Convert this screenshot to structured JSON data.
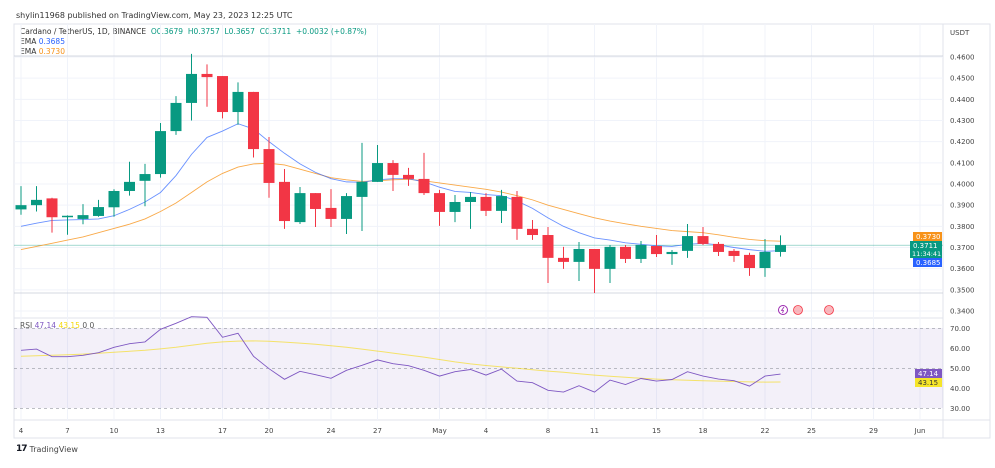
{
  "header": {
    "published": "shylin11968 published on TradingView.com, May 23, 2023 12:25 UTC"
  },
  "legend": {
    "symbol": "Cardano / TetherUS, 1D, BINANCE",
    "open": "O0.3679",
    "high": "H0.3757",
    "low": "L0.3657",
    "close": "C0.3711",
    "change": "+0.0032 (+0.87%)",
    "ema1_label": "EMA",
    "ema1_value": "0.3685",
    "ema2_label": "EMA",
    "ema2_value": "0.3730"
  },
  "rsi_legend": {
    "label": "RSI",
    "value": "47.14",
    "ma_value": "43.15",
    "extra1": "0",
    "extra2": "0"
  },
  "price_axis": {
    "currency": "USDT"
  },
  "tags": {
    "ema2": "0.3730",
    "last": "0.3711",
    "countdown": "11:34:41",
    "ema1": "0.3685",
    "rsi": "47.14",
    "rsi_ma": "43.15"
  },
  "footer": {
    "brand": "TradingView"
  },
  "colors": {
    "up": "#089981",
    "down": "#f23645",
    "ema1": "#2962ff",
    "ema2": "#f7931a",
    "rsi": "#7e57c2",
    "rsi_ma": "#f5d90a"
  },
  "chart_data": [
    {
      "type": "candlestick",
      "dates": [
        "Apr 4",
        "Apr 5",
        "Apr 6",
        "Apr 7",
        "Apr 8",
        "Apr 9",
        "Apr 10",
        "Apr 11",
        "Apr 12",
        "Apr 13",
        "Apr 14",
        "Apr 15",
        "Apr 16",
        "Apr 17",
        "Apr 18",
        "Apr 19",
        "Apr 20",
        "Apr 21",
        "Apr 22",
        "Apr 23",
        "Apr 24",
        "Apr 25",
        "Apr 26",
        "Apr 27",
        "Apr 28",
        "Apr 29",
        "Apr 30",
        "May 1",
        "May 2",
        "May 3",
        "May 4",
        "May 5",
        "May 6",
        "May 7",
        "May 8",
        "May 9",
        "May 10",
        "May 11",
        "May 12",
        "May 13",
        "May 14",
        "May 15",
        "May 16",
        "May 17",
        "May 18",
        "May 19",
        "May 20",
        "May 21",
        "May 22",
        "May 23"
      ],
      "ohlc": [
        [
          0.388,
          0.399,
          0.3855,
          0.39
        ],
        [
          0.39,
          0.399,
          0.387,
          0.3925
        ],
        [
          0.3932,
          0.3935,
          0.377,
          0.3843
        ],
        [
          0.3843,
          0.3852,
          0.376,
          0.385
        ],
        [
          0.3835,
          0.3905,
          0.381,
          0.3853
        ],
        [
          0.3849,
          0.3925,
          0.3845,
          0.3891
        ],
        [
          0.389,
          0.3975,
          0.3845,
          0.3967
        ],
        [
          0.3967,
          0.4105,
          0.3945,
          0.401
        ],
        [
          0.4015,
          0.4095,
          0.3895,
          0.4047
        ],
        [
          0.4047,
          0.4288,
          0.403,
          0.425
        ],
        [
          0.425,
          0.4415,
          0.4232,
          0.4383
        ],
        [
          0.4383,
          0.4615,
          0.43,
          0.452
        ],
        [
          0.452,
          0.4565,
          0.4365,
          0.4505
        ],
        [
          0.451,
          0.451,
          0.431,
          0.434
        ],
        [
          0.434,
          0.448,
          0.428,
          0.4435
        ],
        [
          0.4435,
          0.4435,
          0.4125,
          0.4165
        ],
        [
          0.4165,
          0.4222,
          0.3935,
          0.4005
        ],
        [
          0.401,
          0.4071,
          0.3788,
          0.3825
        ],
        [
          0.382,
          0.3986,
          0.3811,
          0.3957
        ],
        [
          0.3957,
          0.3957,
          0.3797,
          0.3882
        ],
        [
          0.3887,
          0.3976,
          0.3797,
          0.3835
        ],
        [
          0.3835,
          0.3957,
          0.3764,
          0.3943
        ],
        [
          0.3939,
          0.4194,
          0.3778,
          0.401
        ],
        [
          0.401,
          0.4184,
          0.401,
          0.4099
        ],
        [
          0.4099,
          0.4113,
          0.3967,
          0.4043
        ],
        [
          0.4043,
          0.4076,
          0.3991,
          0.4024
        ],
        [
          0.4024,
          0.4147,
          0.3948,
          0.3957
        ],
        [
          0.3957,
          0.3972,
          0.3802,
          0.3868
        ],
        [
          0.3868,
          0.3948,
          0.382,
          0.3915
        ],
        [
          0.3915,
          0.3962,
          0.3788,
          0.3939
        ],
        [
          0.3939,
          0.3957,
          0.3849,
          0.3873
        ],
        [
          0.3873,
          0.3972,
          0.3816,
          0.3943
        ],
        [
          0.3939,
          0.3967,
          0.3736,
          0.3788
        ],
        [
          0.3788,
          0.383,
          0.3736,
          0.3759
        ],
        [
          0.3759,
          0.3797,
          0.3532,
          0.3651
        ],
        [
          0.3651,
          0.3703,
          0.3599,
          0.3632
        ],
        [
          0.3632,
          0.3726,
          0.3542,
          0.3693
        ],
        [
          0.3693,
          0.3693,
          0.3485,
          0.3599
        ],
        [
          0.3599,
          0.3712,
          0.3532,
          0.3703
        ],
        [
          0.3703,
          0.3712,
          0.3627,
          0.3646
        ],
        [
          0.3646,
          0.3731,
          0.3627,
          0.3712
        ],
        [
          0.3707,
          0.3759,
          0.3655,
          0.3669
        ],
        [
          0.3669,
          0.3688,
          0.3618,
          0.3679
        ],
        [
          0.3684,
          0.3811,
          0.3651,
          0.3754
        ],
        [
          0.3754,
          0.3797,
          0.3712,
          0.3717
        ],
        [
          0.3717,
          0.3726,
          0.366,
          0.3679
        ],
        [
          0.3684,
          0.3693,
          0.3632,
          0.366
        ],
        [
          0.3665,
          0.3675,
          0.3566,
          0.3603
        ],
        [
          0.3603,
          0.374,
          0.3561,
          0.3679
        ],
        [
          0.3679,
          0.3757,
          0.3657,
          0.3711
        ]
      ],
      "ema1": [
        0.38,
        0.3815,
        0.3828,
        0.383,
        0.3832,
        0.3835,
        0.385,
        0.388,
        0.3915,
        0.396,
        0.404,
        0.414,
        0.422,
        0.425,
        0.4285,
        0.426,
        0.42,
        0.4145,
        0.4095,
        0.4055,
        0.4025,
        0.401,
        0.4008,
        0.402,
        0.4025,
        0.4025,
        0.401,
        0.3985,
        0.3965,
        0.396,
        0.395,
        0.3945,
        0.392,
        0.3885,
        0.384,
        0.38,
        0.377,
        0.3745,
        0.3735,
        0.3722,
        0.3715,
        0.3708,
        0.3705,
        0.3715,
        0.372,
        0.3712,
        0.37,
        0.369,
        0.3682,
        0.3685
      ],
      "ema2": [
        0.369,
        0.3705,
        0.372,
        0.3735,
        0.375,
        0.377,
        0.379,
        0.381,
        0.3835,
        0.387,
        0.391,
        0.396,
        0.401,
        0.405,
        0.408,
        0.4095,
        0.4098,
        0.409,
        0.407,
        0.405,
        0.403,
        0.402,
        0.4012,
        0.4015,
        0.402,
        0.4022,
        0.4015,
        0.4005,
        0.3995,
        0.3985,
        0.3975,
        0.3962,
        0.3945,
        0.3925,
        0.39,
        0.388,
        0.386,
        0.384,
        0.3825,
        0.3812,
        0.38,
        0.379,
        0.378,
        0.3775,
        0.377,
        0.376,
        0.3748,
        0.3738,
        0.3732,
        0.373
      ],
      "y_ticks": [
        "0.4600",
        "0.4500",
        "0.4400",
        "0.4300",
        "0.4200",
        "0.4100",
        "0.4000",
        "0.3900",
        "0.3800",
        "0.3700",
        "0.3600",
        "0.3500",
        "0.3400"
      ],
      "ylim": [
        0.34,
        0.46
      ],
      "x_ticks": [
        "4",
        "7",
        "10",
        "13",
        "17",
        "20",
        "24",
        "27",
        "May",
        "4",
        "8",
        "11",
        "15",
        "18",
        "22",
        "25",
        "29",
        "Jun"
      ]
    },
    {
      "type": "line",
      "rsi": [
        59,
        59.6,
        55.8,
        55.8,
        56.5,
        57.8,
        60.5,
        62.3,
        63.2,
        69.5,
        72.5,
        75.8,
        75.5,
        65.5,
        67.5,
        56,
        49.8,
        44.5,
        48.5,
        46.8,
        45,
        49,
        51.5,
        54.2,
        52.3,
        51.3,
        49,
        46.1,
        48.3,
        49.4,
        46.6,
        49.6,
        43.6,
        42.8,
        39,
        38.1,
        41.3,
        38.1,
        44.1,
        41.9,
        44.9,
        43.6,
        44.4,
        48.3,
        46.1,
        44.6,
        43.8,
        41.1,
        46.1,
        47.14
      ],
      "rsi_ma": [
        56,
        56.3,
        56.5,
        56.8,
        57.1,
        57.5,
        58,
        58.5,
        59,
        59.7,
        60.5,
        61.5,
        62.5,
        63.2,
        63.6,
        63.7,
        63.5,
        63.1,
        62.6,
        62,
        61.3,
        60.5,
        59.6,
        58.6,
        57.6,
        56.6,
        55.6,
        54.4,
        53.2,
        52.2,
        51.4,
        50.7,
        50,
        49.3,
        48.6,
        48,
        47.3,
        46.6,
        46,
        45.5,
        45,
        44.6,
        44.3,
        44,
        43.8,
        43.6,
        43.4,
        43.2,
        43.1,
        43.15
      ],
      "y_ticks": [
        "70.00",
        "60.00",
        "50.00",
        "40.00",
        "30.00"
      ],
      "bands": [
        70,
        50,
        30
      ]
    }
  ]
}
